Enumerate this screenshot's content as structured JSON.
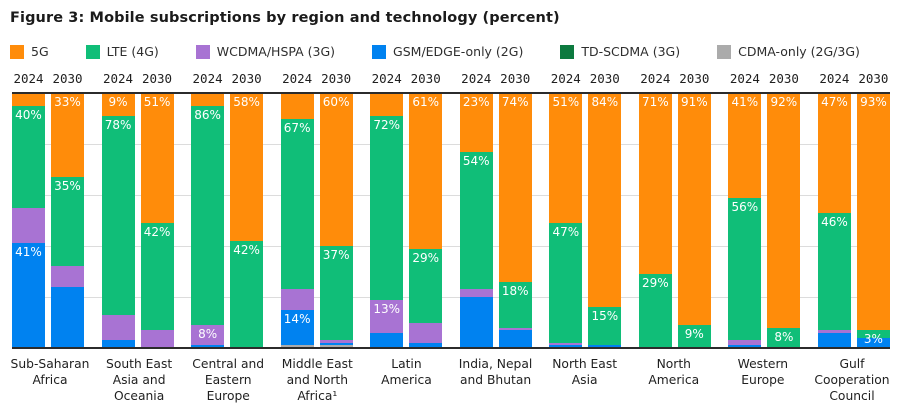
{
  "title": "Figure 3: Mobile subscriptions by region and technology (percent)",
  "chart_data": {
    "type": "bar",
    "subtype": "stacked-100-percent",
    "unit": "percent of mobile subscriptions",
    "y_range": [
      0,
      100
    ],
    "gridlines_percent": [
      20,
      40,
      60,
      80
    ],
    "grid": "on",
    "legend_position": "top",
    "years": [
      "2024",
      "2030"
    ],
    "technologies": [
      {
        "name": "5G",
        "color": "#FF8C0A"
      },
      {
        "name": "LTE (4G)",
        "color": "#10BE78"
      },
      {
        "name": "WCDMA/HSPA (3G)",
        "color": "#A873D3"
      },
      {
        "name": "GSM/EDGE-only (2G)",
        "color": "#0082F0"
      },
      {
        "name": "TD-SCDMA (3G)",
        "color": "#0D7A3F"
      },
      {
        "name": "CDMA-only (2G/3G)",
        "color": "#ABABAB"
      }
    ],
    "groups": [
      {
        "region": "Sub-Saharan Africa",
        "bars": [
          {
            "year": "2024",
            "values": [
              5,
              40,
              14,
              41,
              0,
              0
            ],
            "labels": [
              null,
              "40%",
              null,
              "41%",
              null,
              null
            ]
          },
          {
            "year": "2030",
            "values": [
              33,
              35,
              8,
              24,
              0,
              0
            ],
            "labels": [
              "33%",
              "35%",
              null,
              null,
              null,
              null
            ]
          }
        ]
      },
      {
        "region": "South East Asia and Oceania",
        "bars": [
          {
            "year": "2024",
            "values": [
              9,
              78,
              10,
              3,
              0,
              0
            ],
            "labels": [
              "9%",
              "78%",
              null,
              null,
              null,
              null
            ]
          },
          {
            "year": "2030",
            "values": [
              51,
              42,
              7,
              0,
              0,
              0
            ],
            "labels": [
              "51%",
              "42%",
              null,
              null,
              null,
              null
            ]
          }
        ]
      },
      {
        "region": "Central and Eastern Europe",
        "bars": [
          {
            "year": "2024",
            "values": [
              5,
              86,
              8,
              1,
              0,
              0
            ],
            "labels": [
              null,
              "86%",
              "8%",
              null,
              null,
              null
            ]
          },
          {
            "year": "2030",
            "values": [
              58,
              42,
              0,
              0,
              0,
              0
            ],
            "labels": [
              "58%",
              "42%",
              null,
              null,
              null,
              null
            ]
          }
        ]
      },
      {
        "region": "Middle East and North Africa¹",
        "bars": [
          {
            "year": "2024",
            "values": [
              10,
              67,
              8,
              14,
              0,
              1
            ],
            "labels": [
              null,
              "67%",
              null,
              "14%",
              null,
              null
            ]
          },
          {
            "year": "2030",
            "values": [
              60,
              37,
              1,
              1,
              0,
              1
            ],
            "labels": [
              "60%",
              "37%",
              null,
              null,
              null,
              null
            ]
          }
        ]
      },
      {
        "region": "Latin America",
        "bars": [
          {
            "year": "2024",
            "values": [
              9,
              72,
              13,
              6,
              0,
              0
            ],
            "labels": [
              null,
              "72%",
              "13%",
              null,
              null,
              null
            ]
          },
          {
            "year": "2030",
            "values": [
              61,
              29,
              8,
              2,
              0,
              0
            ],
            "labels": [
              "61%",
              "29%",
              null,
              null,
              null,
              null
            ]
          }
        ]
      },
      {
        "region": "India, Nepal and Bhutan",
        "bars": [
          {
            "year": "2024",
            "values": [
              23,
              54,
              3,
              20,
              0,
              0
            ],
            "labels": [
              "23%",
              "54%",
              null,
              null,
              null,
              null
            ]
          },
          {
            "year": "2030",
            "values": [
              74,
              18,
              1,
              7,
              0,
              0
            ],
            "labels": [
              "74%",
              "18%",
              null,
              null,
              null,
              null
            ]
          }
        ]
      },
      {
        "region": "North East Asia",
        "bars": [
          {
            "year": "2024",
            "values": [
              51,
              47,
              1,
              1,
              0,
              0
            ],
            "labels": [
              "51%",
              "47%",
              null,
              null,
              null,
              null
            ]
          },
          {
            "year": "2030",
            "values": [
              84,
              15,
              0,
              1,
              0,
              0
            ],
            "labels": [
              "84%",
              "15%",
              null,
              null,
              null,
              null
            ]
          }
        ]
      },
      {
        "region": "North America",
        "bars": [
          {
            "year": "2024",
            "values": [
              71,
              29,
              0,
              0,
              0,
              0
            ],
            "labels": [
              "71%",
              "29%",
              null,
              null,
              null,
              null
            ]
          },
          {
            "year": "2030",
            "values": [
              91,
              9,
              0,
              0,
              0,
              0
            ],
            "labels": [
              "91%",
              "9%",
              null,
              null,
              null,
              null
            ]
          }
        ]
      },
      {
        "region": "Western Europe",
        "bars": [
          {
            "year": "2024",
            "values": [
              41,
              56,
              2,
              1,
              0,
              0
            ],
            "labels": [
              "41%",
              "56%",
              null,
              null,
              null,
              null
            ]
          },
          {
            "year": "2030",
            "values": [
              92,
              8,
              0,
              0,
              0,
              0
            ],
            "labels": [
              "92%",
              "8%",
              null,
              null,
              null,
              null
            ]
          }
        ]
      },
      {
        "region": "Gulf Cooperation Council",
        "bars": [
          {
            "year": "2024",
            "values": [
              47,
              46,
              1,
              6,
              0,
              0
            ],
            "labels": [
              "47%",
              "46%",
              null,
              null,
              null,
              null
            ]
          },
          {
            "year": "2030",
            "values": [
              93,
              3,
              0,
              4,
              0,
              0
            ],
            "labels": [
              "93%",
              "3%",
              null,
              null,
              null,
              null
            ]
          }
        ]
      }
    ]
  }
}
